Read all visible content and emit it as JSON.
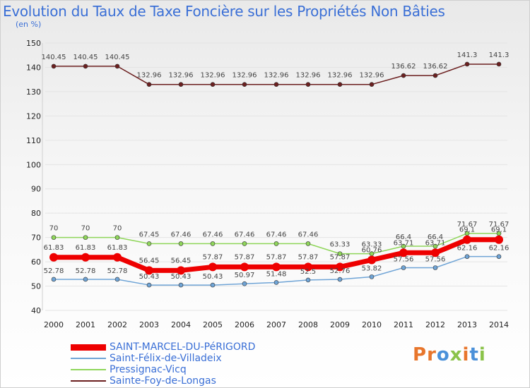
{
  "header": {
    "title": "Evolution du Taux de Taxe Foncière sur les Propriétés Non Bâties",
    "unit": "(en %)"
  },
  "chart_data": {
    "type": "line",
    "title": "Evolution du Taux de Taxe Foncière sur les Propriétés Non Bâties",
    "ylabel": "(en %)",
    "xlabel": "",
    "ylim": [
      40,
      150
    ],
    "yticks": [
      40,
      50,
      60,
      70,
      80,
      90,
      100,
      110,
      120,
      130,
      140,
      150
    ],
    "categories": [
      "2000",
      "2001",
      "2002",
      "2003",
      "2004",
      "2005",
      "2006",
      "2007",
      "2008",
      "2009",
      "2010",
      "2011",
      "2012",
      "2013",
      "2014"
    ],
    "grid": true,
    "series": [
      {
        "name": "Sainte-Foy-de-Longas",
        "color": "#6b1f1f",
        "values": [
          140.45,
          140.45,
          140.45,
          132.96,
          132.96,
          132.96,
          132.96,
          132.96,
          132.96,
          132.96,
          132.96,
          136.62,
          136.62,
          141.3,
          141.3
        ],
        "labels": [
          "140.45",
          "140.45",
          "140.45",
          "132.96",
          "132.96",
          "132.96",
          "132.96",
          "132.96",
          "132.96",
          "132.96",
          "132.96",
          "136.62",
          "136.62",
          "141.3",
          "141.3"
        ]
      },
      {
        "name": "Pressignac-Vicq",
        "color": "#8fd65a",
        "values": [
          70,
          70,
          70,
          67.45,
          67.46,
          67.46,
          67.46,
          67.46,
          67.46,
          63.33,
          63.33,
          66.4,
          66.4,
          71.67,
          71.67
        ],
        "labels": [
          "70",
          "70",
          "70",
          "67.45",
          "67.46",
          "67.46",
          "67.46",
          "67.46",
          "67.46",
          "63.33",
          "63.33",
          "66.4",
          "66.4",
          "71.67",
          "71.67"
        ]
      },
      {
        "name": "Saint-Félix-de-Villadeix",
        "color": "#6fa4d6",
        "values": [
          52.78,
          52.78,
          52.78,
          50.43,
          50.43,
          50.43,
          50.97,
          51.48,
          52.5,
          52.76,
          53.82,
          57.56,
          57.56,
          62.16,
          62.16
        ],
        "labels": [
          "52.78",
          "52.78",
          "52.78",
          "50.43",
          "50.43",
          "50.43",
          "50.97",
          "51.48",
          "52.5",
          "52.76",
          "53.82",
          "57.56",
          "57.56",
          "62.16",
          "62.16"
        ]
      },
      {
        "name": "SAINT-MARCEL-DU-PéRIGORD",
        "color": "#ee0000",
        "values": [
          61.83,
          61.83,
          61.83,
          56.45,
          56.45,
          57.87,
          57.87,
          57.87,
          57.87,
          57.87,
          60.76,
          63.71,
          63.71,
          69.1,
          69.1
        ],
        "labels": [
          "61.83",
          "61.83",
          "61.83",
          "56.45",
          "56.45",
          "57.87",
          "57.87",
          "57.87",
          "57.87",
          "57.87",
          "60.76",
          "63.71",
          "63.71",
          "69.1",
          "69.1"
        ]
      }
    ]
  },
  "legend": {
    "items": [
      {
        "label": "SAINT-MARCEL-DU-PéRIGORD",
        "color": "#ee0000"
      },
      {
        "label": "Saint-Félix-de-Villadeix",
        "color": "#6fa4d6"
      },
      {
        "label": "Pressignac-Vicq",
        "color": "#8fd65a"
      },
      {
        "label": "Sainte-Foy-de-Longas",
        "color": "#6b1f1f"
      }
    ]
  },
  "logo": {
    "text": "Proxiti",
    "colors": [
      "#e8762c",
      "#e8762c",
      "#4a90d9",
      "#8bc34a",
      "#e8762c",
      "#4a90d9",
      "#8bc34a"
    ]
  }
}
